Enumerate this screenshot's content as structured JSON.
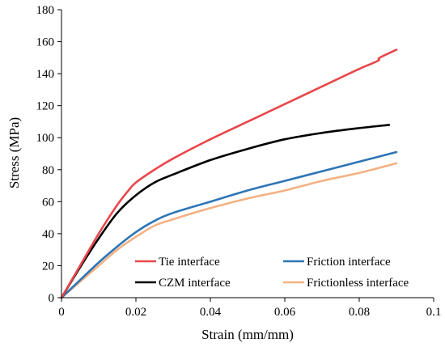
{
  "chart_data": {
    "type": "line",
    "title": "",
    "xlabel": "Strain (mm/mm)",
    "ylabel": "Stress (MPa)",
    "xlim": [
      0,
      0.1
    ],
    "ylim": [
      0,
      180
    ],
    "x_ticks": [
      0,
      0.02,
      0.04,
      0.06,
      0.08,
      0.1
    ],
    "x_tick_labels": [
      "0",
      "0.02",
      "0.04",
      "0.06",
      "0.08",
      "0.1"
    ],
    "y_ticks": [
      0,
      20,
      40,
      60,
      80,
      100,
      120,
      140,
      160,
      180
    ],
    "y_tick_labels": [
      "0",
      "20",
      "40",
      "60",
      "80",
      "100",
      "120",
      "140",
      "160",
      "180"
    ],
    "grid": false,
    "legend_position": "bottom-center, two columns",
    "series": [
      {
        "name": "Tie interface",
        "color": "#E8474B",
        "x": [
          0,
          0.005,
          0.01,
          0.015,
          0.018,
          0.02,
          0.025,
          0.03,
          0.04,
          0.05,
          0.06,
          0.07,
          0.08,
          0.085,
          0.0855,
          0.09
        ],
        "y": [
          0,
          20,
          40,
          58,
          67,
          72,
          80,
          87,
          99,
          110,
          121,
          132,
          143,
          148,
          150,
          155
        ]
      },
      {
        "name": "Friction interface",
        "color": "#2E75B6",
        "x": [
          0,
          0.005,
          0.01,
          0.015,
          0.02,
          0.025,
          0.03,
          0.04,
          0.05,
          0.06,
          0.07,
          0.08,
          0.09
        ],
        "y": [
          0,
          11,
          22,
          32,
          41,
          48,
          53,
          60,
          67,
          73,
          79,
          85,
          91
        ]
      },
      {
        "name": "CZM interface",
        "color": "#000000",
        "x": [
          0,
          0.005,
          0.01,
          0.015,
          0.02,
          0.025,
          0.03,
          0.04,
          0.05,
          0.06,
          0.07,
          0.08,
          0.088
        ],
        "y": [
          0,
          19,
          37,
          53,
          64,
          72,
          77,
          86,
          93,
          99,
          103,
          106,
          108
        ]
      },
      {
        "name": "Frictionless interface",
        "color": "#F4B183",
        "x": [
          0,
          0.005,
          0.01,
          0.015,
          0.02,
          0.025,
          0.03,
          0.04,
          0.05,
          0.06,
          0.07,
          0.08,
          0.09
        ],
        "y": [
          0,
          10,
          20,
          30,
          38,
          45,
          49,
          56,
          62,
          67,
          73,
          78,
          84
        ]
      }
    ]
  }
}
